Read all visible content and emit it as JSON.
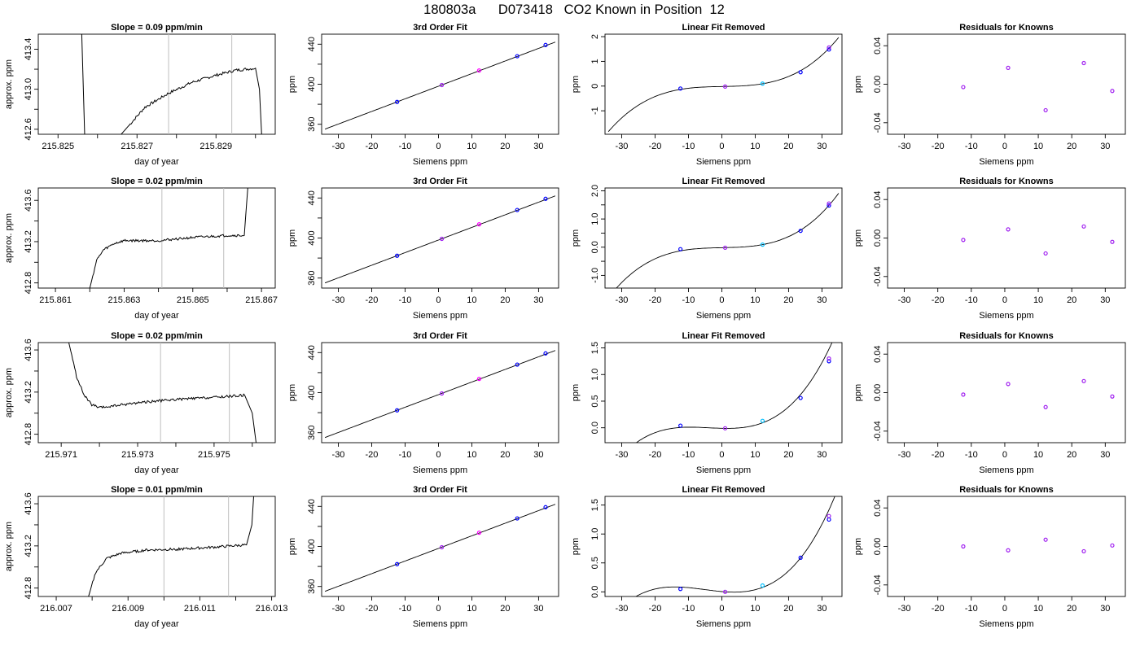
{
  "page": {
    "title": "180803a      D073418   CO2 Known in Position  12"
  },
  "colors": {
    "line": "#000000",
    "vline": "#BEBEBE",
    "point_blue": "#0000FF",
    "point_purple": "#A020F0",
    "point_cyan": "#00BFFF",
    "point_magenta": "#FF00FF"
  },
  "chart_data": [
    {
      "row": 0,
      "type": "line",
      "title": "Slope =  0.09  ppm/min",
      "xlabel": "day of year",
      "ylabel": "approx. ppm",
      "xlim": [
        215.8245,
        215.8305
      ],
      "ylim": [
        412.55,
        413.55
      ],
      "xticks": [
        215.825,
        215.826,
        215.827,
        215.828,
        215.829,
        215.83
      ],
      "xtick_labels": [
        "215.825",
        "",
        "215.827",
        "",
        "215.829",
        ""
      ],
      "yticks": [
        412.6,
        412.8,
        413.0,
        413.2,
        413.4
      ],
      "ytick_labels": [
        "412.6",
        "",
        "413.0",
        "",
        "413.4"
      ],
      "vlines": [
        215.8278,
        215.8294
      ],
      "trace": {
        "start": 215.8256,
        "end": 215.8302,
        "pre": [
          [
            215.8256,
            413.55
          ],
          [
            215.8257,
            412.2
          ]
        ],
        "ramp": [
          [
            215.8266,
            412.55
          ],
          [
            215.8272,
            412.82
          ],
          [
            215.8278,
            412.96
          ],
          [
            215.8284,
            413.07
          ],
          [
            215.829,
            413.14
          ],
          [
            215.8295,
            413.19
          ],
          [
            215.83,
            413.21
          ]
        ],
        "post": [
          [
            215.8301,
            413.0
          ],
          [
            215.8302,
            412.2
          ]
        ],
        "noise": 0.014
      }
    },
    {
      "row": 0,
      "type": "scatter",
      "title": "3rd Order Fit",
      "xlabel": "Siemens ppm",
      "ylabel": "ppm",
      "xlim": [
        -35,
        36
      ],
      "ylim": [
        350,
        450
      ],
      "xticks": [
        -30,
        -20,
        -10,
        0,
        10,
        20,
        30
      ],
      "yticks": [
        360,
        380,
        400,
        420,
        440
      ],
      "ytick_labels": [
        "360",
        "",
        "400",
        "",
        "440"
      ],
      "x": [
        -12.4,
        1.0,
        12.2,
        23.6,
        32.1
      ],
      "y": [
        382.3,
        399.2,
        413.7,
        428.0,
        439.2
      ],
      "fit": {
        "slope": 1.26,
        "intercept": 398.0
      }
    },
    {
      "row": 0,
      "type": "scatter",
      "title": "Linear Fit Removed",
      "xlabel": "Siemens ppm",
      "ylabel": "ppm",
      "xlim": [
        -35,
        36
      ],
      "ylim": [
        -1.95,
        2.1
      ],
      "xticks": [
        -30,
        -20,
        -10,
        0,
        10,
        20,
        30
      ],
      "yticks": [
        -1,
        0,
        1,
        2
      ],
      "x": [
        -12.4,
        1.0,
        12.2,
        23.6,
        32.1,
        32.1
      ],
      "y": [
        -0.1,
        -0.02,
        0.1,
        0.56,
        1.48,
        1.56
      ],
      "fit": {
        "a3": 4.42e-05,
        "a1": 0.0026,
        "a0": -0.018
      }
    },
    {
      "row": 0,
      "type": "scatter",
      "title": "Residuals for Knowns",
      "xlabel": "Siemens ppm",
      "ylabel": "ppm",
      "xlim": [
        -35,
        36
      ],
      "ylim": [
        -0.052,
        0.052
      ],
      "xticks": [
        -30,
        -20,
        -10,
        0,
        10,
        20,
        30
      ],
      "yticks": [
        -0.04,
        0.0,
        0.04
      ],
      "ytick_labels": [
        "-0.04",
        "0.00",
        "0.04"
      ],
      "x": [
        -12.4,
        1.0,
        12.2,
        23.6,
        32.1
      ],
      "y": [
        -0.003,
        0.017,
        -0.027,
        0.022,
        -0.007
      ]
    },
    {
      "row": 1,
      "type": "line",
      "title": "Slope =  0.02  ppm/min",
      "xlabel": "day of year",
      "ylabel": "approx. ppm",
      "xlim": [
        215.8605,
        215.8674
      ],
      "ylim": [
        412.75,
        413.72
      ],
      "xticks": [
        215.861,
        215.862,
        215.863,
        215.864,
        215.865,
        215.866,
        215.867
      ],
      "xtick_labels": [
        "215.861",
        "",
        "215.863",
        "",
        "215.865",
        "",
        "215.867"
      ],
      "yticks": [
        412.8,
        413.0,
        413.2,
        413.4,
        413.6
      ],
      "ytick_labels": [
        "412.8",
        "",
        "413.2",
        "",
        "413.6"
      ],
      "vlines": [
        215.8641,
        215.8659
      ],
      "trace": {
        "start": 215.862,
        "end": 215.8666,
        "pre": [],
        "ramp": [
          [
            215.862,
            412.75
          ],
          [
            215.8622,
            413.02
          ],
          [
            215.8624,
            413.12
          ],
          [
            215.8627,
            413.18
          ],
          [
            215.863,
            413.21
          ],
          [
            215.864,
            413.21
          ],
          [
            215.865,
            413.24
          ],
          [
            215.866,
            413.26
          ],
          [
            215.8665,
            413.26
          ]
        ],
        "post": [
          [
            215.86655,
            413.5
          ],
          [
            215.8666,
            413.72
          ]
        ],
        "noise": 0.012
      }
    },
    {
      "row": 1,
      "type": "scatter",
      "title": "3rd Order Fit",
      "xlabel": "Siemens ppm",
      "ylabel": "ppm",
      "xlim": [
        -35,
        36
      ],
      "ylim": [
        350,
        450
      ],
      "xticks": [
        -30,
        -20,
        -10,
        0,
        10,
        20,
        30
      ],
      "yticks": [
        360,
        380,
        400,
        420,
        440
      ],
      "ytick_labels": [
        "360",
        "",
        "400",
        "",
        "440"
      ],
      "x": [
        -12.4,
        1.0,
        12.2,
        23.6,
        32.1
      ],
      "y": [
        382.3,
        399.2,
        413.7,
        428.0,
        439.2
      ],
      "fit": {
        "slope": 1.26,
        "intercept": 398.0
      }
    },
    {
      "row": 1,
      "type": "scatter",
      "title": "Linear Fit Removed",
      "xlabel": "Siemens ppm",
      "ylabel": "ppm",
      "xlim": [
        -35,
        36
      ],
      "ylim": [
        -1.45,
        2.1
      ],
      "xticks": [
        -30,
        -20,
        -10,
        0,
        10,
        20,
        30
      ],
      "yticks": [
        -1.0,
        -0.5,
        0.0,
        0.5,
        1.0,
        1.5,
        2.0
      ],
      "ytick_labels": [
        "-1.0",
        "",
        "0.0",
        "",
        "1.0",
        "",
        "2.0"
      ],
      "x": [
        -12.4,
        1.0,
        12.2,
        23.6,
        32.1,
        32.1
      ],
      "y": [
        -0.07,
        -0.02,
        0.09,
        0.58,
        1.48,
        1.55
      ],
      "fit": {
        "a3": 4.3e-05,
        "a1": 0.0025,
        "a0": -0.018
      }
    },
    {
      "row": 1,
      "type": "scatter",
      "title": "Residuals for Knowns",
      "xlabel": "Siemens ppm",
      "ylabel": "ppm",
      "xlim": [
        -35,
        36
      ],
      "ylim": [
        -0.052,
        0.052
      ],
      "xticks": [
        -30,
        -20,
        -10,
        0,
        10,
        20,
        30
      ],
      "yticks": [
        -0.04,
        0.0,
        0.04
      ],
      "ytick_labels": [
        "-0.04",
        "0.00",
        "0.04"
      ],
      "x": [
        -12.4,
        1.0,
        12.2,
        23.6,
        32.1
      ],
      "y": [
        -0.002,
        0.009,
        -0.016,
        0.012,
        -0.004
      ]
    },
    {
      "row": 2,
      "type": "line",
      "title": "Slope =  0.02  ppm/min",
      "xlabel": "day of year",
      "ylabel": "approx. ppm",
      "xlim": [
        215.9704,
        215.9766
      ],
      "ylim": [
        412.72,
        413.67
      ],
      "xticks": [
        215.971,
        215.972,
        215.973,
        215.974,
        215.975,
        215.976
      ],
      "xtick_labels": [
        "215.971",
        "",
        "215.973",
        "",
        "215.975",
        ""
      ],
      "yticks": [
        412.8,
        413.0,
        413.2,
        413.4,
        413.6
      ],
      "ytick_labels": [
        "412.8",
        "",
        "413.2",
        "",
        "413.6"
      ],
      "vlines": [
        215.9736,
        215.9754
      ],
      "trace": {
        "start": 215.9712,
        "end": 215.9761,
        "pre": [],
        "ramp": [
          [
            215.9712,
            413.67
          ],
          [
            215.9714,
            413.35
          ],
          [
            215.9716,
            413.17
          ],
          [
            215.9718,
            413.08
          ],
          [
            215.972,
            413.05
          ],
          [
            215.973,
            413.1
          ],
          [
            215.974,
            413.13
          ],
          [
            215.975,
            413.15
          ],
          [
            215.9758,
            413.17
          ]
        ],
        "post": [
          [
            215.976,
            413.0
          ],
          [
            215.9761,
            412.72
          ]
        ],
        "noise": 0.012
      }
    },
    {
      "row": 2,
      "type": "scatter",
      "title": "3rd Order Fit",
      "xlabel": "Siemens ppm",
      "ylabel": "ppm",
      "xlim": [
        -35,
        36
      ],
      "ylim": [
        350,
        450
      ],
      "xticks": [
        -30,
        -20,
        -10,
        0,
        10,
        20,
        30
      ],
      "yticks": [
        360,
        380,
        400,
        420,
        440
      ],
      "ytick_labels": [
        "360",
        "",
        "400",
        "",
        "440"
      ],
      "x": [
        -12.4,
        1.0,
        12.2,
        23.6,
        32.1
      ],
      "y": [
        382.3,
        399.2,
        413.7,
        428.0,
        439.2
      ],
      "fit": {
        "slope": 1.26,
        "intercept": 398.0
      }
    },
    {
      "row": 2,
      "type": "scatter",
      "title": "Linear Fit Removed",
      "xlabel": "Siemens ppm",
      "ylabel": "ppm",
      "xlim": [
        -35,
        36
      ],
      "ylim": [
        -0.28,
        1.6
      ],
      "xticks": [
        -30,
        -20,
        -10,
        0,
        10,
        20,
        30
      ],
      "yticks": [
        0.0,
        0.5,
        1.0,
        1.5
      ],
      "ytick_labels": [
        "0.0",
        "0.5",
        "1.0",
        "1.5"
      ],
      "x": [
        -12.4,
        1.0,
        12.2,
        23.6,
        32.1,
        32.1
      ],
      "y": [
        0.04,
        -0.01,
        0.13,
        0.56,
        1.25,
        1.3
      ],
      "fit": {
        "a3": 3.4e-05,
        "a2": 0.0004,
        "a1": -0.0015,
        "a0": -0.01
      }
    },
    {
      "row": 2,
      "type": "scatter",
      "title": "Residuals for Knowns",
      "xlabel": "Siemens ppm",
      "ylabel": "ppm",
      "xlim": [
        -35,
        36
      ],
      "ylim": [
        -0.052,
        0.052
      ],
      "xticks": [
        -30,
        -20,
        -10,
        0,
        10,
        20,
        30
      ],
      "yticks": [
        -0.04,
        0.0,
        0.04
      ],
      "ytick_labels": [
        "-0.04",
        "0.00",
        "0.04"
      ],
      "x": [
        -12.4,
        1.0,
        12.2,
        23.6,
        32.1
      ],
      "y": [
        -0.002,
        0.009,
        -0.015,
        0.012,
        -0.004
      ]
    },
    {
      "row": 3,
      "type": "line",
      "title": "Slope =  0.01  ppm/min",
      "xlabel": "day of year",
      "ylabel": "approx. ppm",
      "xlim": [
        216.0065,
        216.0131
      ],
      "ylim": [
        412.72,
        413.67
      ],
      "xticks": [
        216.007,
        216.008,
        216.009,
        216.01,
        216.011,
        216.012,
        216.013
      ],
      "xtick_labels": [
        "216.007",
        "",
        "216.009",
        "",
        "216.011",
        "",
        "216.013"
      ],
      "yticks": [
        412.8,
        413.0,
        413.2,
        413.4,
        413.6
      ],
      "ytick_labels": [
        "412.8",
        "",
        "413.2",
        "",
        "413.6"
      ],
      "vlines": [
        216.01,
        216.0118
      ],
      "trace": {
        "start": 216.0079,
        "end": 216.0125,
        "pre": [],
        "ramp": [
          [
            216.0079,
            412.72
          ],
          [
            216.0081,
            412.95
          ],
          [
            216.0084,
            413.08
          ],
          [
            216.0088,
            413.13
          ],
          [
            216.0095,
            413.16
          ],
          [
            216.0105,
            413.17
          ],
          [
            216.0115,
            413.19
          ],
          [
            216.0123,
            413.21
          ]
        ],
        "post": [
          [
            216.01245,
            413.4
          ],
          [
            216.0125,
            413.67
          ]
        ],
        "noise": 0.012
      }
    },
    {
      "row": 3,
      "type": "scatter",
      "title": "3rd Order Fit",
      "xlabel": "Siemens ppm",
      "ylabel": "ppm",
      "xlim": [
        -35,
        36
      ],
      "ylim": [
        350,
        450
      ],
      "xticks": [
        -30,
        -20,
        -10,
        0,
        10,
        20,
        30
      ],
      "yticks": [
        360,
        380,
        400,
        420,
        440
      ],
      "ytick_labels": [
        "360",
        "",
        "400",
        "",
        "440"
      ],
      "x": [
        -12.4,
        1.0,
        12.2,
        23.6,
        32.1
      ],
      "y": [
        382.3,
        399.2,
        413.7,
        428.0,
        439.2
      ],
      "fit": {
        "slope": 1.26,
        "intercept": 398.0
      }
    },
    {
      "row": 3,
      "type": "scatter",
      "title": "Linear Fit Removed",
      "xlabel": "Siemens ppm",
      "ylabel": "ppm",
      "xlim": [
        -35,
        36
      ],
      "ylim": [
        -0.08,
        1.65
      ],
      "xticks": [
        -30,
        -20,
        -10,
        0,
        10,
        20,
        30
      ],
      "yticks": [
        0.0,
        0.5,
        1.0,
        1.5
      ],
      "ytick_labels": [
        "0.0",
        "0.5",
        "1.0",
        "1.5"
      ],
      "x": [
        -12.4,
        1.0,
        12.2,
        23.6,
        32.1,
        32.1
      ],
      "y": [
        0.05,
        0.0,
        0.11,
        0.59,
        1.25,
        1.31
      ],
      "fit": {
        "a3": 3.2e-05,
        "a2": 0.0005,
        "a1": -0.005,
        "a0": 0.005
      }
    },
    {
      "row": 3,
      "type": "scatter",
      "title": "Residuals for Knowns",
      "xlabel": "Siemens ppm",
      "ylabel": "ppm",
      "xlim": [
        -35,
        36
      ],
      "ylim": [
        -0.052,
        0.052
      ],
      "xticks": [
        -30,
        -20,
        -10,
        0,
        10,
        20,
        30
      ],
      "yticks": [
        -0.04,
        0.0,
        0.04
      ],
      "ytick_labels": [
        "-0.04",
        "0.00",
        "0.04"
      ],
      "x": [
        -12.4,
        1.0,
        12.2,
        23.6,
        32.1
      ],
      "y": [
        0.0,
        -0.004,
        0.007,
        -0.005,
        0.001
      ]
    }
  ]
}
